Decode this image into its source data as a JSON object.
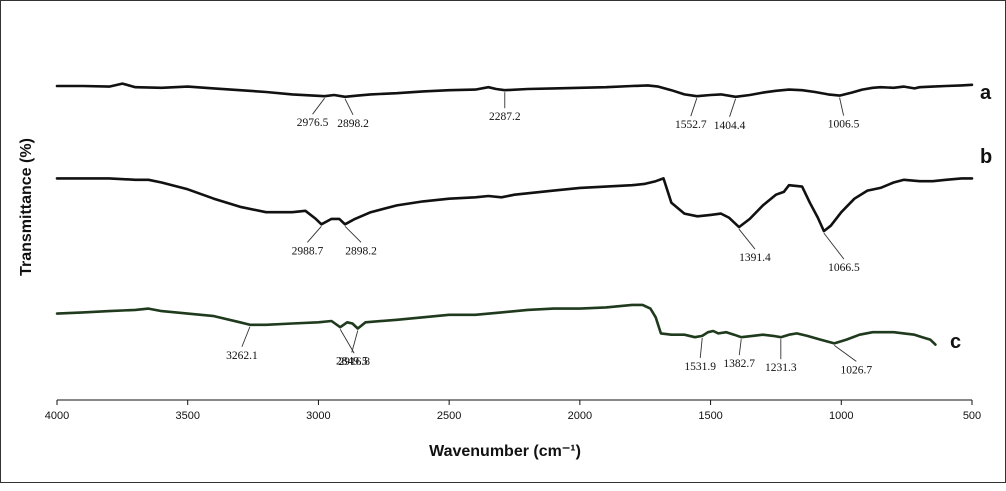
{
  "chart_data": {
    "type": "line",
    "xlabel": "Wavenumber (cm⁻¹)",
    "ylabel": "Transmittance (%)",
    "xlim": [
      4000,
      500
    ],
    "x_reversed": true,
    "x_ticks": [
      4000,
      3500,
      3000,
      2500,
      2000,
      1500,
      1000,
      500
    ],
    "y_ticks_shown": false,
    "grid": false,
    "series": [
      {
        "name": "a",
        "color": "#111111",
        "points": [
          [
            4000,
            9.0
          ],
          [
            3900,
            9.0
          ],
          [
            3800,
            8.9
          ],
          [
            3750,
            9.4
          ],
          [
            3700,
            8.8
          ],
          [
            3600,
            8.7
          ],
          [
            3500,
            8.9
          ],
          [
            3400,
            8.6
          ],
          [
            3300,
            8.3
          ],
          [
            3200,
            8.0
          ],
          [
            3100,
            7.6
          ],
          [
            3020,
            7.4
          ],
          [
            2976.5,
            7.3
          ],
          [
            2940,
            7.5
          ],
          [
            2898.2,
            7.2
          ],
          [
            2850,
            7.4
          ],
          [
            2800,
            7.6
          ],
          [
            2700,
            7.8
          ],
          [
            2600,
            8.1
          ],
          [
            2500,
            8.3
          ],
          [
            2400,
            8.4
          ],
          [
            2350,
            8.8
          ],
          [
            2320,
            8.5
          ],
          [
            2287.2,
            8.3
          ],
          [
            2200,
            8.5
          ],
          [
            2100,
            8.6
          ],
          [
            2000,
            8.7
          ],
          [
            1900,
            8.8
          ],
          [
            1800,
            9.0
          ],
          [
            1740,
            9.1
          ],
          [
            1700,
            8.9
          ],
          [
            1650,
            8.3
          ],
          [
            1600,
            7.6
          ],
          [
            1552.7,
            7.3
          ],
          [
            1500,
            7.5
          ],
          [
            1460,
            7.6
          ],
          [
            1404.4,
            7.2
          ],
          [
            1350,
            7.5
          ],
          [
            1300,
            7.9
          ],
          [
            1250,
            8.2
          ],
          [
            1200,
            8.4
          ],
          [
            1150,
            8.3
          ],
          [
            1100,
            8.0
          ],
          [
            1050,
            7.6
          ],
          [
            1006.5,
            7.4
          ],
          [
            960,
            7.9
          ],
          [
            920,
            8.4
          ],
          [
            880,
            8.7
          ],
          [
            850,
            8.8
          ],
          [
            800,
            8.7
          ],
          [
            760,
            8.9
          ],
          [
            720,
            8.6
          ],
          [
            700,
            8.8
          ],
          [
            650,
            8.9
          ],
          [
            600,
            9.0
          ],
          [
            540,
            9.1
          ],
          [
            500,
            9.2
          ]
        ]
      },
      {
        "name": "b",
        "color": "#111111",
        "points": [
          [
            4000,
            7.3
          ],
          [
            3900,
            7.3
          ],
          [
            3800,
            7.3
          ],
          [
            3700,
            7.2
          ],
          [
            3650,
            7.2
          ],
          [
            3600,
            7.0
          ],
          [
            3500,
            6.5
          ],
          [
            3400,
            5.8
          ],
          [
            3300,
            5.2
          ],
          [
            3200,
            4.8
          ],
          [
            3100,
            4.8
          ],
          [
            3050,
            4.9
          ],
          [
            3010,
            4.3
          ],
          [
            2988.7,
            3.9
          ],
          [
            2950,
            4.3
          ],
          [
            2920,
            4.3
          ],
          [
            2898.2,
            3.9
          ],
          [
            2860,
            4.3
          ],
          [
            2800,
            4.8
          ],
          [
            2700,
            5.3
          ],
          [
            2600,
            5.6
          ],
          [
            2500,
            5.8
          ],
          [
            2400,
            5.9
          ],
          [
            2350,
            6.0
          ],
          [
            2300,
            5.9
          ],
          [
            2250,
            6.1
          ],
          [
            2200,
            6.2
          ],
          [
            2100,
            6.4
          ],
          [
            2000,
            6.6
          ],
          [
            1900,
            6.7
          ],
          [
            1800,
            6.8
          ],
          [
            1750,
            6.9
          ],
          [
            1710,
            7.1
          ],
          [
            1680,
            7.3
          ],
          [
            1650,
            5.5
          ],
          [
            1600,
            4.7
          ],
          [
            1550,
            4.5
          ],
          [
            1500,
            4.6
          ],
          [
            1460,
            4.7
          ],
          [
            1430,
            4.4
          ],
          [
            1391.4,
            3.7
          ],
          [
            1350,
            4.3
          ],
          [
            1300,
            5.3
          ],
          [
            1250,
            6.1
          ],
          [
            1220,
            6.3
          ],
          [
            1200,
            6.8
          ],
          [
            1150,
            6.7
          ],
          [
            1120,
            5.5
          ],
          [
            1090,
            4.4
          ],
          [
            1066.5,
            3.4
          ],
          [
            1040,
            3.8
          ],
          [
            1000,
            4.8
          ],
          [
            950,
            5.8
          ],
          [
            900,
            6.4
          ],
          [
            850,
            6.6
          ],
          [
            800,
            7.0
          ],
          [
            760,
            7.2
          ],
          [
            700,
            7.1
          ],
          [
            650,
            7.1
          ],
          [
            600,
            7.2
          ],
          [
            540,
            7.3
          ],
          [
            500,
            7.3
          ]
        ]
      },
      {
        "name": "c",
        "color": "#1f3a1c",
        "points": [
          [
            4000,
            3.5
          ],
          [
            3900,
            3.6
          ],
          [
            3800,
            3.7
          ],
          [
            3700,
            3.8
          ],
          [
            3650,
            3.9
          ],
          [
            3600,
            3.7
          ],
          [
            3500,
            3.5
          ],
          [
            3400,
            3.3
          ],
          [
            3300,
            2.8
          ],
          [
            3262.1,
            2.6
          ],
          [
            3200,
            2.6
          ],
          [
            3100,
            2.7
          ],
          [
            3000,
            2.8
          ],
          [
            2950,
            2.9
          ],
          [
            2916.8,
            2.4
          ],
          [
            2890,
            2.8
          ],
          [
            2870,
            2.7
          ],
          [
            2849.5,
            2.3
          ],
          [
            2820,
            2.8
          ],
          [
            2700,
            3.0
          ],
          [
            2600,
            3.2
          ],
          [
            2500,
            3.4
          ],
          [
            2400,
            3.4
          ],
          [
            2300,
            3.6
          ],
          [
            2200,
            3.8
          ],
          [
            2100,
            3.9
          ],
          [
            2000,
            3.9
          ],
          [
            1900,
            4.0
          ],
          [
            1800,
            4.2
          ],
          [
            1760,
            4.2
          ],
          [
            1730,
            3.9
          ],
          [
            1710,
            3.2
          ],
          [
            1690,
            1.9
          ],
          [
            1650,
            1.8
          ],
          [
            1600,
            1.8
          ],
          [
            1560,
            1.6
          ],
          [
            1531.9,
            1.7
          ],
          [
            1510,
            2.0
          ],
          [
            1490,
            2.1
          ],
          [
            1470,
            1.9
          ],
          [
            1440,
            2.0
          ],
          [
            1410,
            1.8
          ],
          [
            1382.7,
            1.6
          ],
          [
            1340,
            1.7
          ],
          [
            1300,
            1.8
          ],
          [
            1260,
            1.7
          ],
          [
            1231.3,
            1.6
          ],
          [
            1200,
            1.8
          ],
          [
            1170,
            1.9
          ],
          [
            1130,
            1.7
          ],
          [
            1080,
            1.4
          ],
          [
            1026.7,
            1.1
          ],
          [
            980,
            1.4
          ],
          [
            930,
            1.8
          ],
          [
            880,
            2.0
          ],
          [
            840,
            2.0
          ],
          [
            800,
            2.0
          ],
          [
            760,
            1.9
          ],
          [
            720,
            1.8
          ],
          [
            690,
            1.6
          ],
          [
            660,
            1.4
          ],
          [
            640,
            1.0
          ]
        ]
      }
    ],
    "annotations": [
      {
        "text": "2976.5",
        "series": "a",
        "x": 2976.5
      },
      {
        "text": "2898.2",
        "series": "a",
        "x": 2898.2
      },
      {
        "text": "2287.2",
        "series": "a",
        "x": 2287.2
      },
      {
        "text": "1552.7",
        "series": "a",
        "x": 1552.7
      },
      {
        "text": "1404.4",
        "series": "a",
        "x": 1404.4
      },
      {
        "text": "1006.5",
        "series": "a",
        "x": 1006.5
      },
      {
        "text": "2988.7",
        "series": "b",
        "x": 2988.7
      },
      {
        "text": "2898.2",
        "series": "b",
        "x": 2898.2
      },
      {
        "text": "1391.4",
        "series": "b",
        "x": 1391.4
      },
      {
        "text": "1066.5",
        "series": "b",
        "x": 1066.5
      },
      {
        "text": "3262.1",
        "series": "c",
        "x": 3262.1
      },
      {
        "text": "2849.5",
        "series": "c",
        "x": 2849.5
      },
      {
        "text": "2916.8",
        "series": "c",
        "x": 2916.8
      },
      {
        "text": "1531.9",
        "series": "c",
        "x": 1531.9
      },
      {
        "text": "1382.7",
        "series": "c",
        "x": 1382.7
      },
      {
        "text": "1231.3",
        "series": "c",
        "x": 1231.3
      },
      {
        "text": "1026.7",
        "series": "c",
        "x": 1026.7
      }
    ]
  }
}
